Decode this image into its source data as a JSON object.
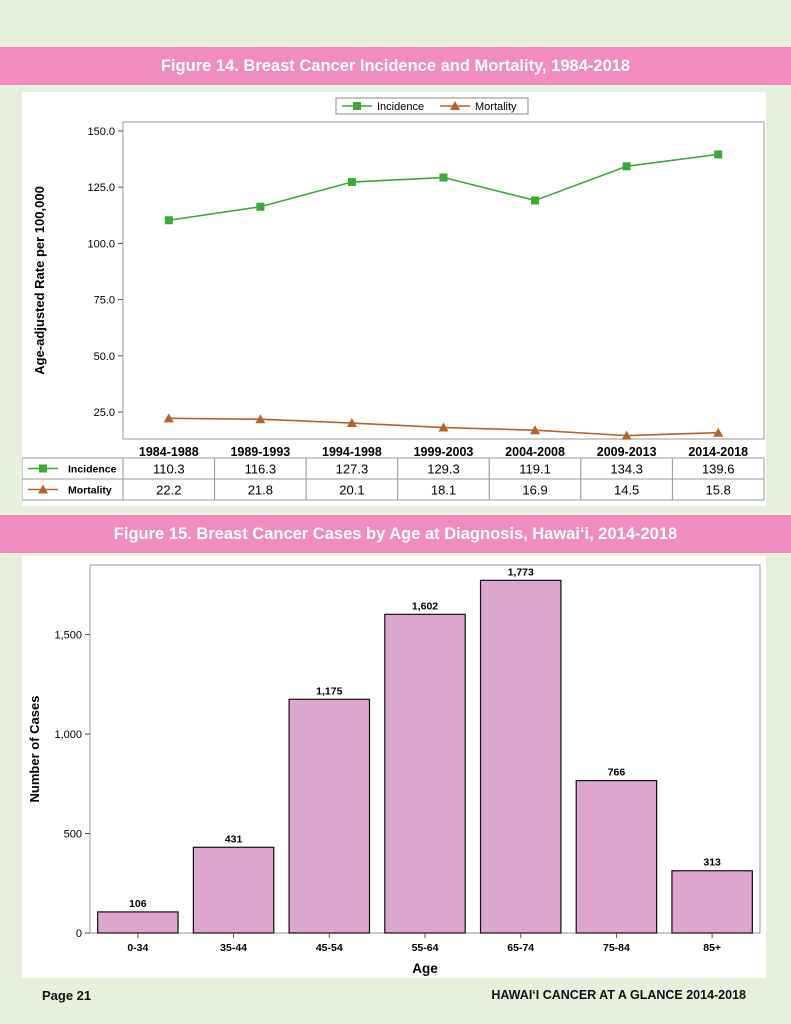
{
  "colors": {
    "banner": "#f08cc0",
    "page_background": "#e6f0dc",
    "incidence": "#3aaa35",
    "mortality": "#b8622a",
    "bar_fill": "#dda6cf"
  },
  "figure14_title": "Figure 14. Breast Cancer Incidence and Mortality, 1984-2018",
  "figure15_title": "Figure 15. Breast Cancer Cases by Age at Diagnosis, Hawai‘i, 2014-2018",
  "footer": {
    "page": "Page 21",
    "publication": "HAWAI‘I CANCER AT A GLANCE 2014-2018"
  },
  "chart_data": [
    {
      "type": "line",
      "title": "Figure 14. Breast Cancer Incidence and Mortality, 1984-2018",
      "ylabel": "Age-adjusted Rate per 100,000",
      "xlabel": "",
      "categories": [
        "1984-1988",
        "1989-1993",
        "1994-1998",
        "1999-2003",
        "2004-2008",
        "2009-2013",
        "2014-2018"
      ],
      "yticks": [
        "25.0",
        "50.0",
        "75.0",
        "100.0",
        "125.0",
        "150.0"
      ],
      "ylim": [
        13,
        154
      ],
      "grid": false,
      "legend_position": "top-center",
      "series": [
        {
          "name": "Incidence",
          "marker": "square",
          "color": "#3aaa35",
          "values": [
            110.3,
            116.3,
            127.3,
            129.3,
            119.1,
            134.3,
            139.6
          ],
          "labels": [
            "110.3",
            "116.3",
            "127.3",
            "129.3",
            "119.1",
            "134.3",
            "139.6"
          ]
        },
        {
          "name": "Mortality",
          "marker": "triangle",
          "color": "#b8622a",
          "values": [
            22.2,
            21.8,
            20.1,
            18.1,
            16.9,
            14.5,
            15.8
          ],
          "labels": [
            "22.2",
            "21.8",
            "20.1",
            "18.1",
            "16.9",
            "14.5",
            "15.8"
          ]
        }
      ],
      "data_table": true
    },
    {
      "type": "bar",
      "title": "Figure 15. Breast Cancer Cases by Age at Diagnosis, Hawai‘i, 2014-2018",
      "xlabel": "Age",
      "ylabel": "Number of Cases",
      "categories": [
        "0-34",
        "35-44",
        "45-54",
        "55-64",
        "65-74",
        "75-84",
        "85+"
      ],
      "values": [
        106,
        431,
        1175,
        1602,
        1773,
        766,
        313
      ],
      "value_labels": [
        "106",
        "431",
        "1,175",
        "1,602",
        "1,773",
        "766",
        "313"
      ],
      "yticks": [
        "0",
        "500",
        "1,000",
        "1,500"
      ],
      "ylim": [
        0,
        1850
      ],
      "grid": false
    }
  ]
}
